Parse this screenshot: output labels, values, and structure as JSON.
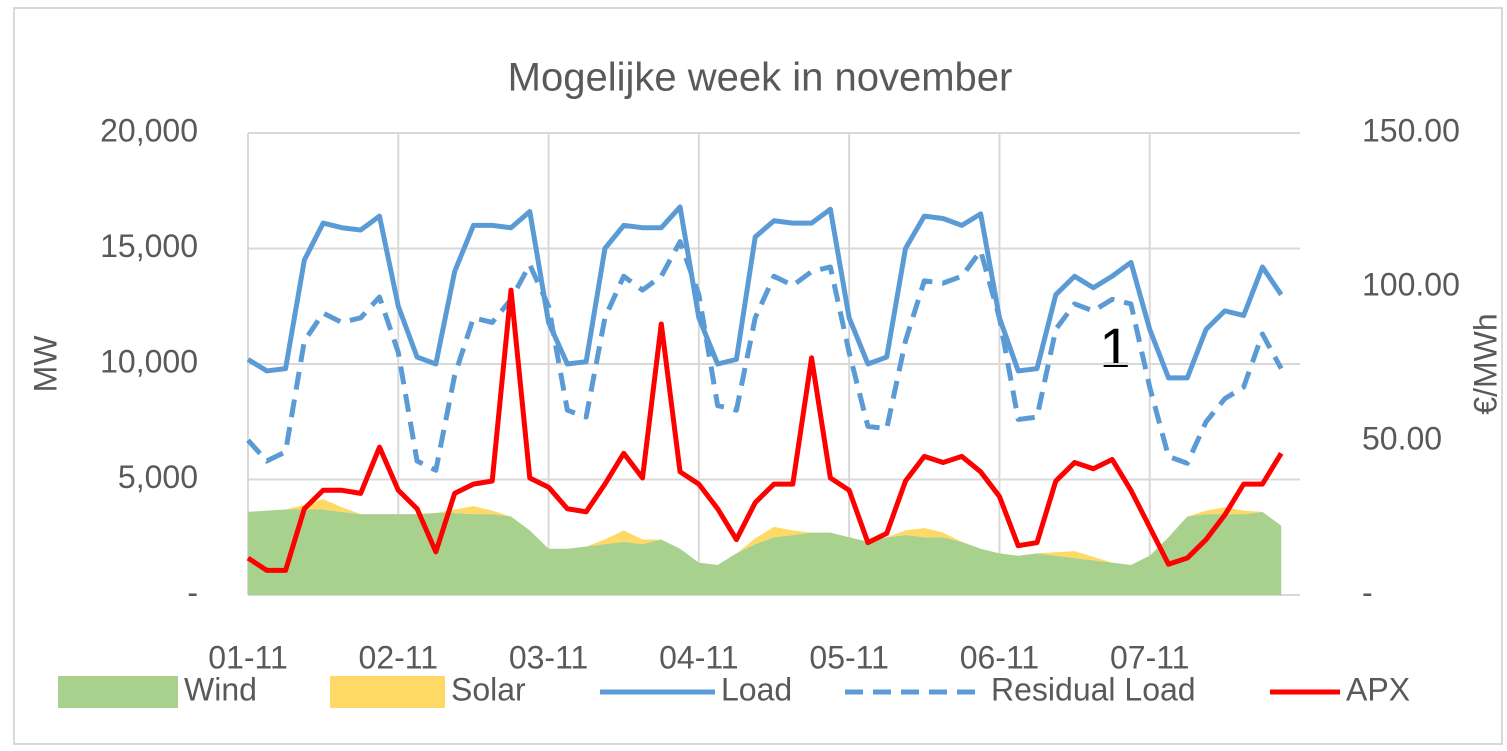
{
  "chart_data": {
    "type": "line",
    "title": "Mogelijke week in november",
    "y_label": "MW",
    "y2_label": "€/MWh",
    "annotations": [
      "1"
    ],
    "categories": [
      "01-11",
      null,
      null,
      null,
      null,
      null,
      null,
      null,
      "02-11",
      null,
      null,
      null,
      null,
      null,
      null,
      null,
      "03-11",
      null,
      null,
      null,
      null,
      null,
      null,
      null,
      "04-11",
      null,
      null,
      null,
      null,
      null,
      null,
      null,
      "05-11",
      null,
      null,
      null,
      null,
      null,
      null,
      null,
      "06-11",
      null,
      null,
      null,
      null,
      null,
      null,
      null,
      "07-11",
      null,
      null,
      null,
      null,
      null,
      null,
      null
    ],
    "ylim": [
      0,
      20000
    ],
    "yticks": [
      {
        "value": 0,
        "label": "-"
      },
      {
        "value": 5000,
        "label": "5,000"
      },
      {
        "value": 10000,
        "label": "10,000"
      },
      {
        "value": 15000,
        "label": "15,000"
      },
      {
        "value": 20000,
        "label": "20,000"
      }
    ],
    "y2lim": [
      0,
      150
    ],
    "y2ticks": [
      {
        "value": 0,
        "label": "-"
      },
      {
        "value": 50,
        "label": "50.00"
      },
      {
        "value": 100,
        "label": "100.00"
      },
      {
        "value": 150,
        "label": "150.00"
      }
    ],
    "grid": true,
    "legend": "bottom",
    "series": [
      {
        "name": "Wind",
        "kind": "area",
        "color": "#a9d18e",
        "values": [
          3600,
          3650,
          3700,
          3700,
          3700,
          3600,
          3500,
          3500,
          3500,
          3500,
          3550,
          3550,
          3500,
          3500,
          3400,
          2800,
          2000,
          2000,
          2100,
          2200,
          2300,
          2200,
          2400,
          2000,
          1400,
          1300,
          1800,
          2200,
          2500,
          2600,
          2700,
          2700,
          2500,
          2300,
          2500,
          2600,
          2500,
          2500,
          2300,
          2000,
          1800,
          1700,
          1800,
          1700,
          1600,
          1500,
          1400,
          1300,
          1700,
          2500,
          3400,
          3500,
          3500,
          3500,
          3600,
          3000
        ]
      },
      {
        "name": "Solar",
        "kind": "area",
        "color": "#ffd966",
        "values": [
          0,
          0,
          0,
          200,
          450,
          200,
          0,
          0,
          0,
          0,
          0,
          150,
          350,
          150,
          0,
          0,
          0,
          0,
          0,
          200,
          500,
          200,
          0,
          0,
          0,
          0,
          0,
          250,
          450,
          200,
          0,
          0,
          0,
          0,
          0,
          200,
          400,
          200,
          0,
          0,
          0,
          0,
          0,
          150,
          300,
          150,
          0,
          0,
          0,
          0,
          0,
          150,
          300,
          150,
          0,
          0
        ]
      },
      {
        "name": "Load",
        "kind": "line",
        "color": "#5b9bd5",
        "values": [
          10200,
          9700,
          9800,
          14500,
          16100,
          15900,
          15800,
          16400,
          12500,
          10300,
          10000,
          14000,
          16000,
          16000,
          15900,
          16600,
          11800,
          10000,
          10100,
          15000,
          16000,
          15900,
          15900,
          16800,
          12000,
          10000,
          10200,
          15500,
          16200,
          16100,
          16100,
          16700,
          12000,
          10000,
          10300,
          15000,
          16400,
          16300,
          16000,
          16500,
          12000,
          9700,
          9800,
          13000,
          13800,
          13300,
          13800,
          14400,
          11500,
          9400,
          9400,
          11500,
          12300,
          12100,
          14200,
          13000
        ]
      },
      {
        "name": "Residual Load",
        "kind": "dashed",
        "color": "#5b9bd5",
        "values": [
          6700,
          5800,
          6200,
          11000,
          12200,
          11800,
          12000,
          12900,
          10500,
          5800,
          5400,
          9500,
          12000,
          11800,
          12800,
          14300,
          12500,
          8000,
          7700,
          12000,
          13800,
          13200,
          13800,
          15300,
          13000,
          8200,
          8000,
          12000,
          13800,
          13400,
          14000,
          14200,
          10500,
          7300,
          7200,
          11000,
          13600,
          13500,
          13800,
          14900,
          12000,
          7600,
          7700,
          11500,
          12600,
          12300,
          12800,
          12600,
          9000,
          6000,
          5700,
          7500,
          8500,
          9000,
          11300,
          9800
        ]
      },
      {
        "name": "APX",
        "kind": "line",
        "axis": "y2",
        "color": "#ff0000",
        "values": [
          12,
          8,
          8,
          28,
          34,
          34,
          33,
          48,
          34,
          28,
          14,
          33,
          36,
          37,
          99,
          38,
          35,
          28,
          27,
          36,
          46,
          38,
          88,
          40,
          36,
          28,
          18,
          30,
          36,
          36,
          77,
          38,
          34,
          17,
          20,
          37,
          45,
          43,
          45,
          40,
          32,
          16,
          17,
          37,
          43,
          41,
          44,
          34,
          22,
          10,
          12,
          18,
          26,
          36,
          36,
          46
        ]
      }
    ]
  }
}
